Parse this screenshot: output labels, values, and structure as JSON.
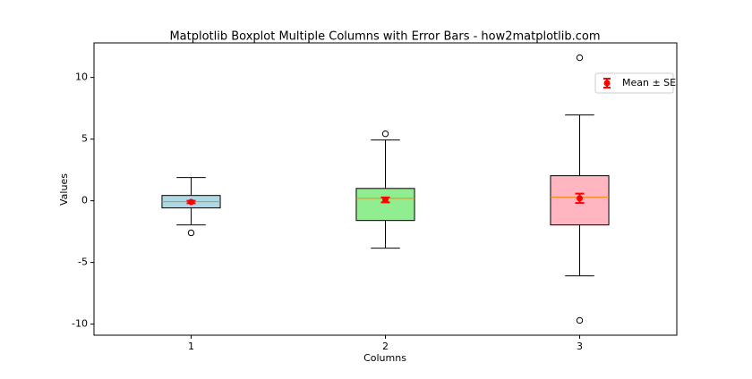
{
  "chart_data": {
    "type": "box",
    "title": "Matplotlib Boxplot Multiple Columns with Error Bars - how2matplotlib.com",
    "x_label": "Columns",
    "y_label": "Values",
    "categories": [
      "1",
      "2",
      "3"
    ],
    "ylim": [
      -10.9,
      12.8
    ],
    "yticks": [
      -10,
      -5,
      0,
      5,
      10
    ],
    "boxes": [
      {
        "color": "#add8e6",
        "q1": -0.58,
        "median": -0.07,
        "q3": 0.43,
        "whisker_low": -1.96,
        "whisker_high": 1.88,
        "outliers": [
          -2.6
        ],
        "mean": -0.1,
        "se": 0.1
      },
      {
        "color": "#90ee90",
        "q1": -1.6,
        "median": 0.2,
        "q3": 1.0,
        "whisker_low": -3.84,
        "whisker_high": 4.93,
        "outliers": [
          5.43
        ],
        "mean": 0.07,
        "se": 0.2
      },
      {
        "color": "#ffb6c1",
        "q1": -1.96,
        "median": 0.29,
        "q3": 2.03,
        "whisker_low": -6.09,
        "whisker_high": 6.96,
        "outliers": [
          11.6,
          -9.7
        ],
        "mean": 0.2,
        "se": 0.38
      }
    ],
    "median_color": "#ff7f0e",
    "mean_color": "#ff0000",
    "legend": {
      "label": "Mean ± SE",
      "position": "upper right"
    }
  }
}
